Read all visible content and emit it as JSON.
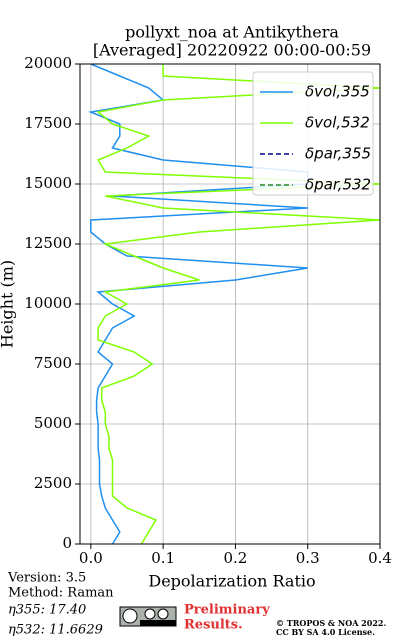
{
  "chart_data": {
    "type": "profile",
    "title": [
      "pollyxt_noa at Antikythera",
      "[Averaged] 20220922 00:00-00:59"
    ],
    "xlabel": "Depolarization Ratio",
    "ylabel": "Height (m)",
    "xlim": [
      -0.015,
      0.4
    ],
    "ylim": [
      0,
      20000
    ],
    "xticks": [
      {
        "value": 0,
        "label": "0.0"
      },
      0.1,
      0.2,
      0.3,
      0.4
    ],
    "yticks": [
      0,
      2500,
      5000,
      7500,
      10000,
      12500,
      15000,
      17500,
      20000
    ],
    "grid": true,
    "legend": "upper right",
    "y": [
      0,
      500,
      1000,
      1500,
      2000,
      2500,
      3000,
      3500,
      4000,
      4500,
      5000,
      5500,
      6000,
      6500,
      7000,
      7500,
      8000,
      8500,
      9000,
      9500,
      10000,
      10500,
      11000,
      11500,
      12000,
      12500,
      13000,
      13500,
      14000,
      14500,
      15000,
      15500,
      16000,
      16500,
      17000,
      17500,
      18000,
      18500,
      19000,
      19500,
      20000
    ],
    "series": [
      {
        "name": "δvol,355",
        "color": "#1f8ff0",
        "linestyle": "solid",
        "values": [
          0.03,
          0.04,
          0.03,
          0.02,
          0.015,
          0.012,
          0.012,
          0.012,
          0.01,
          0.01,
          0.01,
          0.008,
          0.008,
          0.01,
          0.02,
          0.03,
          0.01,
          0.02,
          0.03,
          0.06,
          0.03,
          0.01,
          0.2,
          0.3,
          0.05,
          0.02,
          0.0,
          0.0,
          0.3,
          0.03,
          0.3,
          0.3,
          0.1,
          0.03,
          0.04,
          0.04,
          0.0,
          0.1,
          0.08,
          0.04,
          0.0
        ]
      },
      {
        "name": "δvol,532",
        "color": "#80ff00",
        "linestyle": "solid",
        "values": [
          0.07,
          0.08,
          0.09,
          0.05,
          0.03,
          0.03,
          0.03,
          0.03,
          0.025,
          0.025,
          0.02,
          0.02,
          0.015,
          0.015,
          0.06,
          0.085,
          0.06,
          0.01,
          0.01,
          0.02,
          0.05,
          0.02,
          0.15,
          0.1,
          0.06,
          0.02,
          0.15,
          0.4,
          0.1,
          0.02,
          0.4,
          0.02,
          0.01,
          0.05,
          0.08,
          0.03,
          0.01,
          0.1,
          0.4,
          0.1,
          0.1
        ]
      },
      {
        "name": "δpar,355",
        "color": "#00008b",
        "linestyle": "dashed",
        "values": [
          null,
          null,
          null,
          null,
          null,
          null,
          null,
          null,
          null,
          null,
          null,
          null,
          null,
          null,
          null,
          null,
          null,
          null,
          null,
          null,
          null,
          null,
          null,
          null,
          null,
          null,
          null,
          null,
          null,
          null,
          null,
          null,
          null,
          null,
          null,
          null,
          null,
          null,
          null,
          null,
          null
        ]
      },
      {
        "name": "δpar,532",
        "color": "#228b22",
        "linestyle": "dashed",
        "values": [
          null,
          null,
          null,
          null,
          null,
          null,
          null,
          null,
          null,
          null,
          null,
          null,
          null,
          null,
          null,
          null,
          null,
          null,
          null,
          null,
          null,
          null,
          null,
          null,
          null,
          null,
          null,
          null,
          null,
          null,
          null,
          null,
          null,
          null,
          null,
          null,
          null,
          null,
          null,
          null,
          null
        ]
      }
    ]
  },
  "footer": {
    "version": "Version: 3.5",
    "method": "Method: Raman",
    "eta355": "η355:  17.40",
    "eta532": "η532: 11.6629",
    "preliminary": [
      "Preliminary",
      "Results."
    ],
    "copyright": [
      "© TROPOS & NOA 2022.",
      "CC BY SA 4.0 License."
    ]
  }
}
